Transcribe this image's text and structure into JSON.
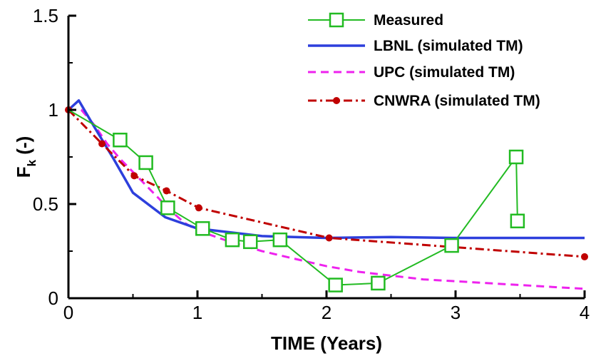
{
  "chart_data": {
    "type": "line",
    "xlabel": "TIME (Years)",
    "ylabel": {
      "main": "F",
      "sub": "k",
      "suffix": " (-)"
    },
    "xlim": [
      0,
      4
    ],
    "ylim": [
      0,
      1.5
    ],
    "x_ticks": [
      0,
      1,
      2,
      3,
      4
    ],
    "x_tick_labels": [
      "0",
      "1",
      "2",
      "3",
      "4"
    ],
    "y_ticks": [
      0,
      0.5,
      1,
      1.5
    ],
    "y_tick_labels": [
      "0",
      "0.5",
      "1",
      "1.5"
    ],
    "grid": false,
    "legend_position": "top-right",
    "series": [
      {
        "name": "Measured",
        "color": "#22bb22",
        "style": "solid-square-markers",
        "x": [
          0,
          0.4,
          0.6,
          0.77,
          1.04,
          1.27,
          1.41,
          1.64,
          2.07,
          2.4,
          2.97,
          3.47,
          3.48
        ],
        "y": [
          1.0,
          0.84,
          0.72,
          0.48,
          0.37,
          0.31,
          0.3,
          0.31,
          0.07,
          0.08,
          0.28,
          0.75,
          0.41
        ]
      },
      {
        "name": "LBNL (simulated TM)",
        "color": "#2d3fdc",
        "style": "solid-thick",
        "x": [
          0,
          0.08,
          0.2,
          0.35,
          0.5,
          0.75,
          1.0,
          1.25,
          1.5,
          1.75,
          2.0,
          2.5,
          3.0,
          3.5,
          4.0
        ],
        "y": [
          1.0,
          1.05,
          0.91,
          0.74,
          0.56,
          0.43,
          0.37,
          0.35,
          0.33,
          0.325,
          0.32,
          0.325,
          0.32,
          0.32,
          0.32
        ]
      },
      {
        "name": "UPC (simulated TM)",
        "color": "#ee22ee",
        "style": "dashed",
        "x": [
          0,
          0.1,
          0.2,
          0.3,
          0.4,
          0.5,
          0.6,
          0.7,
          0.8,
          0.9,
          1.0,
          1.25,
          1.5,
          1.75,
          2.0,
          2.25,
          2.5,
          2.75,
          3.0,
          3.25,
          3.5,
          3.75,
          4.0
        ],
        "y": [
          1.0,
          1.0,
          0.92,
          0.82,
          0.74,
          0.67,
          0.6,
          0.53,
          0.46,
          0.4,
          0.36,
          0.3,
          0.25,
          0.21,
          0.17,
          0.14,
          0.12,
          0.1,
          0.09,
          0.08,
          0.07,
          0.06,
          0.05
        ]
      },
      {
        "name": "CNWRA (simulated TM)",
        "color": "#c00000",
        "style": "dash-dot-circle-markers",
        "x": [
          0,
          0.26,
          0.51,
          0.76,
          1.01,
          2.02,
          4.0
        ],
        "y": [
          1.0,
          0.82,
          0.65,
          0.57,
          0.48,
          0.32,
          0.22
        ]
      }
    ]
  }
}
